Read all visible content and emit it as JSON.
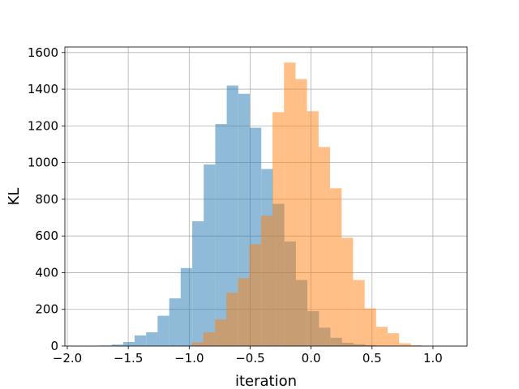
{
  "chart_data": {
    "type": "bar",
    "subtype": "histogram-overlay",
    "title": "",
    "xlabel": "iteration",
    "ylabel": "KL",
    "xlim": [
      -2.02,
      1.28
    ],
    "ylim": [
      0,
      1630
    ],
    "xticks": [
      "−2.0",
      "−1.5",
      "−1.0",
      "−0.5",
      "0.0",
      "0.5",
      "1.0"
    ],
    "xtick_values": [
      -2.0,
      -1.5,
      -1.0,
      -0.5,
      0.0,
      0.5,
      1.0
    ],
    "yticks": [
      "0",
      "200",
      "400",
      "600",
      "800",
      "1000",
      "1200",
      "1400",
      "1600"
    ],
    "ytick_values": [
      0,
      200,
      400,
      600,
      800,
      1000,
      1200,
      1400,
      1600
    ],
    "grid": true,
    "series": [
      {
        "color": "#1f77b4",
        "alpha": 0.5,
        "bin_width": 0.0945,
        "bins": [
          {
            "x0": -1.731,
            "count": 3
          },
          {
            "x0": -1.637,
            "count": 8
          },
          {
            "x0": -1.542,
            "count": 22
          },
          {
            "x0": -1.448,
            "count": 58
          },
          {
            "x0": -1.353,
            "count": 75
          },
          {
            "x0": -1.259,
            "count": 165
          },
          {
            "x0": -1.164,
            "count": 260
          },
          {
            "x0": -1.07,
            "count": 425
          },
          {
            "x0": -0.975,
            "count": 680
          },
          {
            "x0": -0.881,
            "count": 990
          },
          {
            "x0": -0.786,
            "count": 1210
          },
          {
            "x0": -0.692,
            "count": 1420
          },
          {
            "x0": -0.597,
            "count": 1375
          },
          {
            "x0": -0.503,
            "count": 1190
          },
          {
            "x0": -0.408,
            "count": 965
          },
          {
            "x0": -0.314,
            "count": 775
          },
          {
            "x0": -0.219,
            "count": 570
          },
          {
            "x0": -0.125,
            "count": 360
          },
          {
            "x0": -0.03,
            "count": 190
          },
          {
            "x0": 0.064,
            "count": 100
          },
          {
            "x0": 0.159,
            "count": 45
          },
          {
            "x0": 0.253,
            "count": 18
          },
          {
            "x0": 0.348,
            "count": 10
          },
          {
            "x0": 0.442,
            "count": 5
          }
        ]
      },
      {
        "color": "#ff7f0e",
        "alpha": 0.5,
        "bin_width": 0.0945,
        "bins": [
          {
            "x0": -0.978,
            "count": 20
          },
          {
            "x0": -0.884,
            "count": 75
          },
          {
            "x0": -0.789,
            "count": 145
          },
          {
            "x0": -0.695,
            "count": 290
          },
          {
            "x0": -0.6,
            "count": 370
          },
          {
            "x0": -0.506,
            "count": 555
          },
          {
            "x0": -0.411,
            "count": 710
          },
          {
            "x0": -0.317,
            "count": 1275
          },
          {
            "x0": -0.222,
            "count": 1545
          },
          {
            "x0": -0.128,
            "count": 1455
          },
          {
            "x0": -0.033,
            "count": 1280
          },
          {
            "x0": 0.061,
            "count": 1085
          },
          {
            "x0": 0.156,
            "count": 860
          },
          {
            "x0": 0.25,
            "count": 590
          },
          {
            "x0": 0.345,
            "count": 360
          },
          {
            "x0": 0.439,
            "count": 205
          },
          {
            "x0": 0.534,
            "count": 105
          },
          {
            "x0": 0.628,
            "count": 70
          },
          {
            "x0": 0.723,
            "count": 15
          },
          {
            "x0": 0.817,
            "count": 4
          }
        ]
      }
    ]
  }
}
